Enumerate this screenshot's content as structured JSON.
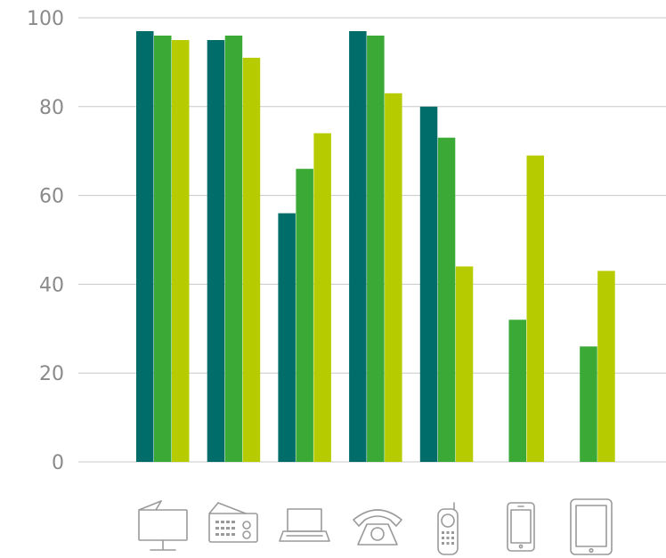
{
  "chart_data": {
    "type": "bar",
    "title": "",
    "xlabel": "",
    "ylabel": "",
    "ylim": [
      0,
      100
    ],
    "yticks": [
      0,
      20,
      40,
      60,
      80,
      100
    ],
    "grid": true,
    "categories": [
      "tv-icon",
      "radio-icon",
      "laptop-icon",
      "telephone-icon",
      "mobile-phone-icon",
      "smartphone-icon",
      "tablet-icon"
    ],
    "series": [
      {
        "color": "#006d6a",
        "values": [
          97,
          95,
          56,
          97,
          80,
          null,
          null
        ]
      },
      {
        "color": "#3aa935",
        "values": [
          96,
          96,
          66,
          96,
          73,
          32,
          26
        ]
      },
      {
        "color": "#b7cc00",
        "values": [
          95,
          91,
          74,
          83,
          44,
          69,
          43
        ]
      }
    ]
  }
}
